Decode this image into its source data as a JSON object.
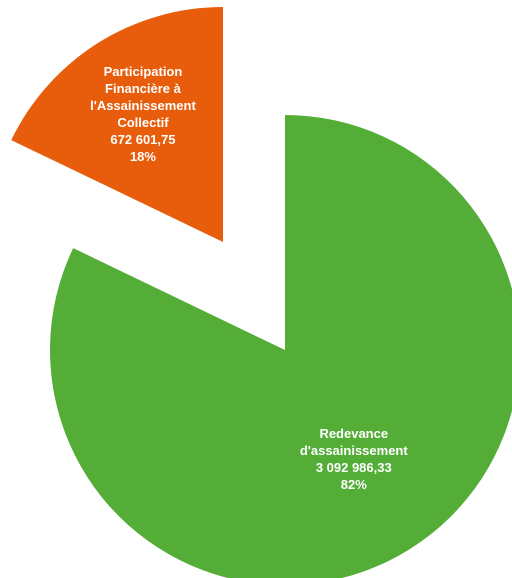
{
  "chart_data": {
    "type": "pie",
    "title": "",
    "slices": [
      {
        "name_lines": [
          "Redevance",
          "d'assainissement"
        ],
        "value": 3092986.33,
        "value_label": "3 092 986,33",
        "percent_label": "82%",
        "color": "#53ad36",
        "exploded": false
      },
      {
        "name_lines": [
          "Participation",
          "Financière à",
          "l'Assainissement",
          "Collectif"
        ],
        "value": 672601.75,
        "value_label": "672 601,75",
        "percent_label": "18%",
        "color": "#e85d0c",
        "exploded": true
      }
    ],
    "legend": "none"
  }
}
